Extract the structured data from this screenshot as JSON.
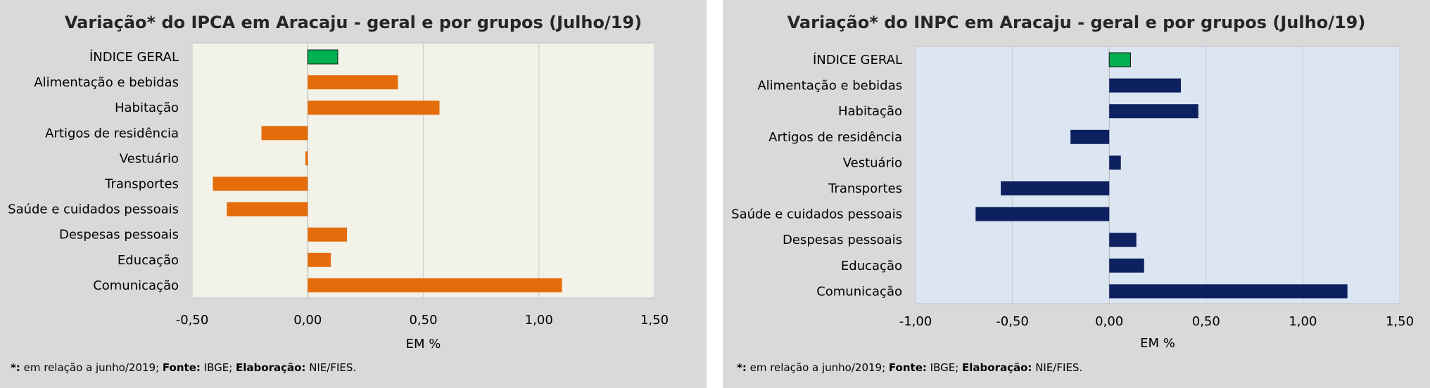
{
  "chart_data": [
    {
      "type": "bar",
      "orientation": "horizontal",
      "title": "Variação*  do IPCA em Aracaju  - geral e por grupos (Julho/19)",
      "xlabel": "EM %",
      "categories": [
        "ÍNDICE GERAL",
        "Alimentação e bebidas",
        "Habitação",
        "Artigos de residência",
        "Vestuário",
        "Transportes",
        "Saúde e cuidados pessoais",
        "Despesas pessoais",
        "Educação",
        "Comunicação"
      ],
      "values": [
        0.13,
        0.39,
        0.57,
        -0.2,
        -0.01,
        -0.41,
        -0.35,
        0.17,
        0.1,
        1.1
      ],
      "highlight_index": 0,
      "xlim": [
        -0.5,
        1.5
      ],
      "xticks": [
        "-0,50",
        "0,00",
        "0,50",
        "1,00",
        "1,50"
      ],
      "grid": true,
      "colors": {
        "bar": "#e46c0a",
        "highlight": "#00b050",
        "plot_bg": "#f2f2e8",
        "grid": "#d0d0d0"
      },
      "footnote": {
        "star": "*:",
        "t1": " em relação a junho/2019; ",
        "fonte_label": "Fonte:",
        "t2": " IBGE; ",
        "elab_label": "Elaboração:",
        "t3": " NIE/FIES."
      }
    },
    {
      "type": "bar",
      "orientation": "horizontal",
      "title": "Variação*  do INPC em Aracaju  - geral e por grupos (Julho/19)",
      "xlabel": "EM %",
      "categories": [
        "ÍNDICE GERAL",
        "Alimentação e bebidas",
        "Habitação",
        "Artigos de residência",
        "Vestuário",
        "Transportes",
        "Saúde e cuidados pessoais",
        "Despesas pessoais",
        "Educação",
        "Comunicação"
      ],
      "values": [
        0.11,
        0.37,
        0.46,
        -0.2,
        0.06,
        -0.56,
        -0.69,
        0.14,
        0.18,
        1.23
      ],
      "highlight_index": 0,
      "xlim": [
        -1.0,
        1.5
      ],
      "xticks": [
        "-1,00",
        "-0,50",
        "0,00",
        "0,50",
        "1,00",
        "1,50"
      ],
      "grid": true,
      "colors": {
        "bar": "#0d2160",
        "highlight": "#00b050",
        "plot_bg": "#dce6f2",
        "grid": "#c8d0dc"
      },
      "footnote": {
        "star": "*:",
        "t1": " em relação a junho/2019; ",
        "fonte_label": "Fonte:",
        "t2": " IBGE; ",
        "elab_label": "Elaboração:",
        "t3": " NIE/FIES."
      }
    }
  ]
}
